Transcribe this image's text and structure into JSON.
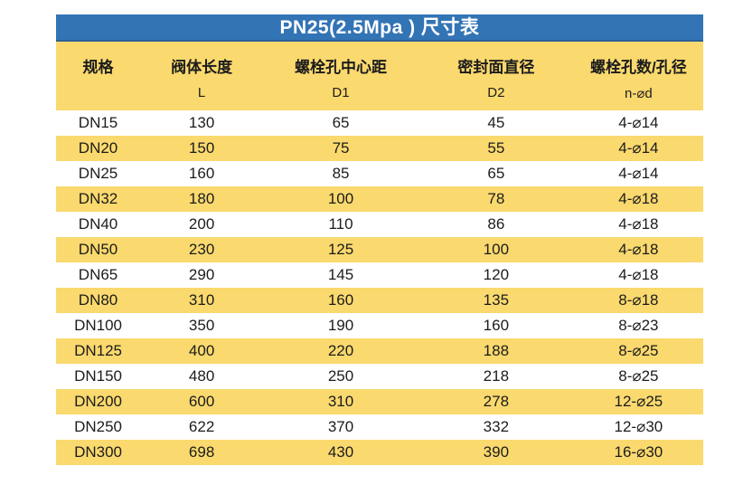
{
  "title": "PN25(2.5Mpa ) 尺寸表",
  "colors": {
    "title_bar_blue": "#3374B5",
    "stripe_yellow": "#FAD96E",
    "row_white": "#FFFFFF",
    "title_text": "#FFFFFF",
    "body_text": "#1C1C1C"
  },
  "table": {
    "columns": [
      {
        "label": "规格",
        "code": ""
      },
      {
        "label": "阀体长度",
        "code": "L"
      },
      {
        "label": "螺栓孔中心距",
        "code": "D1"
      },
      {
        "label": "密封面直径",
        "code": "D2"
      },
      {
        "label": "螺栓孔数/孔径",
        "code": "n-⌀d"
      }
    ],
    "rows": [
      [
        "DN15",
        "130",
        "65",
        "45",
        "4-⌀14"
      ],
      [
        "DN20",
        "150",
        "75",
        "55",
        "4-⌀14"
      ],
      [
        "DN25",
        "160",
        "85",
        "65",
        "4-⌀14"
      ],
      [
        "DN32",
        "180",
        "100",
        "78",
        "4-⌀18"
      ],
      [
        "DN40",
        "200",
        "110",
        "86",
        "4-⌀18"
      ],
      [
        "DN50",
        "230",
        "125",
        "100",
        "4-⌀18"
      ],
      [
        "DN65",
        "290",
        "145",
        "120",
        "4-⌀18"
      ],
      [
        "DN80",
        "310",
        "160",
        "135",
        "8-⌀18"
      ],
      [
        "DN100",
        "350",
        "190",
        "160",
        "8-⌀23"
      ],
      [
        "DN125",
        "400",
        "220",
        "188",
        "8-⌀25"
      ],
      [
        "DN150",
        "480",
        "250",
        "218",
        "8-⌀25"
      ],
      [
        "DN200",
        "600",
        "310",
        "278",
        "12-⌀25"
      ],
      [
        "DN250",
        "622",
        "370",
        "332",
        "12-⌀30"
      ],
      [
        "DN300",
        "698",
        "430",
        "390",
        "16-⌀30"
      ]
    ]
  }
}
